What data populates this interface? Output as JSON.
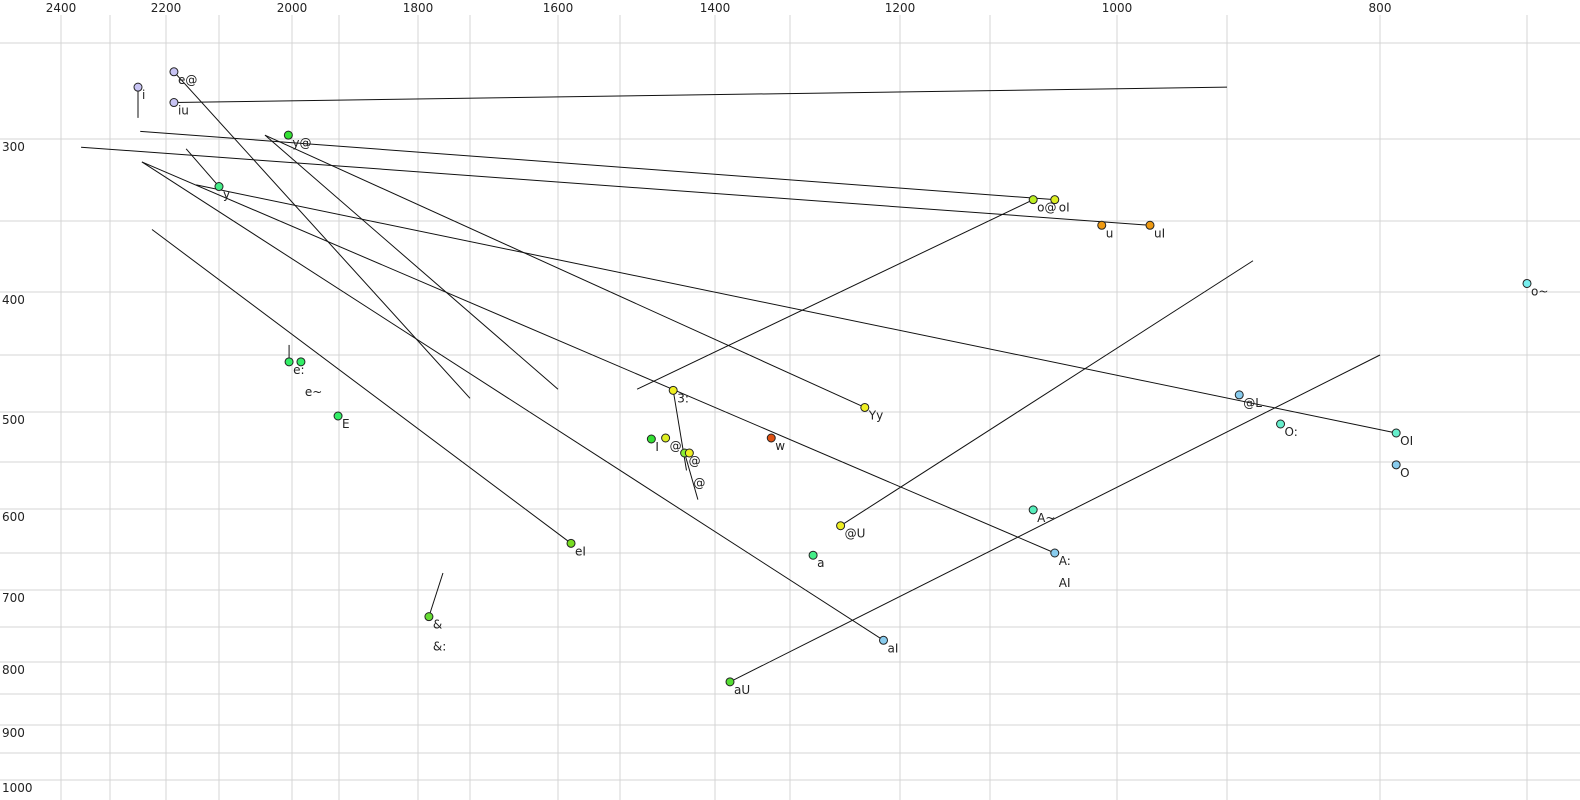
{
  "chart_data": {
    "type": "scatter",
    "title": "",
    "xlabel": "",
    "ylabel": "",
    "x_axis": {
      "reversed": true,
      "position": "top",
      "range": [
        2400,
        700
      ],
      "tick_labels": [
        "2400",
        "2200",
        "2000",
        "1800",
        "1600",
        "1400",
        "1200",
        "1000",
        "800"
      ]
    },
    "y_axis": {
      "reversed": true,
      "position": "left",
      "range": [
        250,
        1000
      ],
      "tick_labels": [
        "300",
        "400",
        "500",
        "600",
        "700",
        "800",
        "900",
        "1000"
      ]
    },
    "grid": true,
    "points": [
      {
        "label": "i",
        "f2": 2250,
        "f1": 273,
        "color": "#c8c4f4",
        "track": [
          [
            2250,
            273
          ],
          [
            2250,
            289
          ]
        ]
      },
      {
        "label": "e@",
        "f2": 2185,
        "f1": 265,
        "color": "#c8c4f4",
        "track": [
          [
            2185,
            265
          ],
          [
            1700,
            488
          ]
        ]
      },
      {
        "label": "iu",
        "f2": 2185,
        "f1": 281,
        "color": "#c8c4f4",
        "track": [
          [
            2185,
            281
          ],
          [
            900,
            273
          ]
        ]
      },
      {
        "label": "y@",
        "f2": 2005,
        "f1": 298,
        "color": "#33e033",
        "track": [
          [
            2037,
            298
          ],
          [
            1600,
            480
          ]
        ]
      },
      {
        "label": "y",
        "f2": 2100,
        "f1": 329,
        "color": "#44ee88",
        "track": [
          [
            2162,
            306
          ],
          [
            2100,
            329
          ]
        ]
      },
      {
        "label": "Yy",
        "f2": 1232,
        "f1": 496,
        "color": "#eeee22",
        "track": [
          [
            2037,
            298
          ],
          [
            1232,
            496
          ]
        ]
      },
      {
        "label": "e:",
        "f2": 2004,
        "f1": 456,
        "color": "#33ee66",
        "track": [
          [
            2004,
            442
          ],
          [
            2004,
            456
          ]
        ]
      },
      {
        "label": "e~",
        "f2": 1981,
        "f1": 456,
        "color": "#33ee66"
      },
      {
        "label": "E",
        "f2": 1902,
        "f1": 504,
        "color": "#33ee66"
      },
      {
        "label": "eI",
        "f2": 1579,
        "f1": 639,
        "color": "#77dd22",
        "track": [
          [
            2225,
            356
          ],
          [
            1579,
            639
          ]
        ]
      },
      {
        "label": "&",
        "f2": 1779,
        "f1": 736,
        "color": "#66dd33",
        "track": [
          [
            1779,
            736
          ],
          [
            1752,
            677
          ]
        ]
      },
      {
        "label": "&:",
        "f2": 1779,
        "f1": 736,
        "color": "#66dd33"
      },
      {
        "label": "I",
        "f2": 1467,
        "f1": 527,
        "color": "#33e033"
      },
      {
        "label": "@",
        "f2": 1452,
        "f1": 526,
        "color": "#ddee22"
      },
      {
        "label": "@",
        "f2": 1432,
        "f1": 541,
        "color": "#88ee33",
        "track": [
          [
            1432,
            541
          ],
          [
            1418,
            590
          ]
        ]
      },
      {
        "label": "@",
        "f2": 1427,
        "f1": 541,
        "color": "#eeee22"
      },
      {
        "label": "3:",
        "f2": 1444,
        "f1": 481,
        "color": "#eeee22",
        "track": [
          [
            1444,
            481
          ],
          [
            1430,
            559
          ]
        ]
      },
      {
        "label": "w",
        "f2": 1325,
        "f1": 526,
        "color": "#e05010"
      },
      {
        "label": "a",
        "f2": 1279,
        "f1": 653,
        "color": "#44ee88"
      },
      {
        "label": "@U",
        "f2": 1254,
        "f1": 619,
        "color": "#eeee22",
        "track": [
          [
            1254,
            619
          ],
          [
            883,
            378
          ]
        ]
      },
      {
        "label": "aI",
        "f2": 1215,
        "f1": 769,
        "color": "#88ccee",
        "track": [
          [
            2243,
            314
          ],
          [
            1215,
            769
          ]
        ]
      },
      {
        "label": "aU",
        "f2": 1380,
        "f1": 831,
        "color": "#55dd33",
        "track": [
          [
            1380,
            831
          ],
          [
            800,
            450
          ]
        ]
      },
      {
        "label": "o@",
        "f2": 1066,
        "f1": 337,
        "color": "#bbee22",
        "track": [
          [
            1482,
            480
          ],
          [
            1066,
            337
          ]
        ]
      },
      {
        "label": "oI",
        "f2": 1049,
        "f1": 337,
        "color": "#ddee22",
        "track": [
          [
            2246,
            296
          ],
          [
            1049,
            337
          ]
        ]
      },
      {
        "label": "u",
        "f2": 1012,
        "f1": 353,
        "color": "#ee9911"
      },
      {
        "label": "uI",
        "f2": 970,
        "f1": 353,
        "color": "#ee9911",
        "track": [
          [
            2359,
            305
          ],
          [
            970,
            353
          ]
        ]
      },
      {
        "label": "o~",
        "f2": 700,
        "f1": 394,
        "color": "#77eeee"
      },
      {
        "label": "@L",
        "f2": 892,
        "f1": 485,
        "color": "#88ccee"
      },
      {
        "label": "O:",
        "f2": 865,
        "f1": 512,
        "color": "#66eecc"
      },
      {
        "label": "OI",
        "f2": 789,
        "f1": 521,
        "color": "#66eecc",
        "track": [
          [
            2143,
            328
          ],
          [
            789,
            521
          ]
        ]
      },
      {
        "label": "O",
        "f2": 789,
        "f1": 553,
        "color": "#88ccee"
      },
      {
        "label": "A~",
        "f2": 1066,
        "f1": 601,
        "color": "#55eebb"
      },
      {
        "label": "A:",
        "f2": 1049,
        "f1": 650,
        "color": "#88ccee",
        "track": [
          [
            2243,
            314
          ],
          [
            1049,
            650
          ]
        ]
      },
      {
        "label": "AI",
        "f2": 1049,
        "f1": 650,
        "color": "#88ccee"
      }
    ]
  }
}
